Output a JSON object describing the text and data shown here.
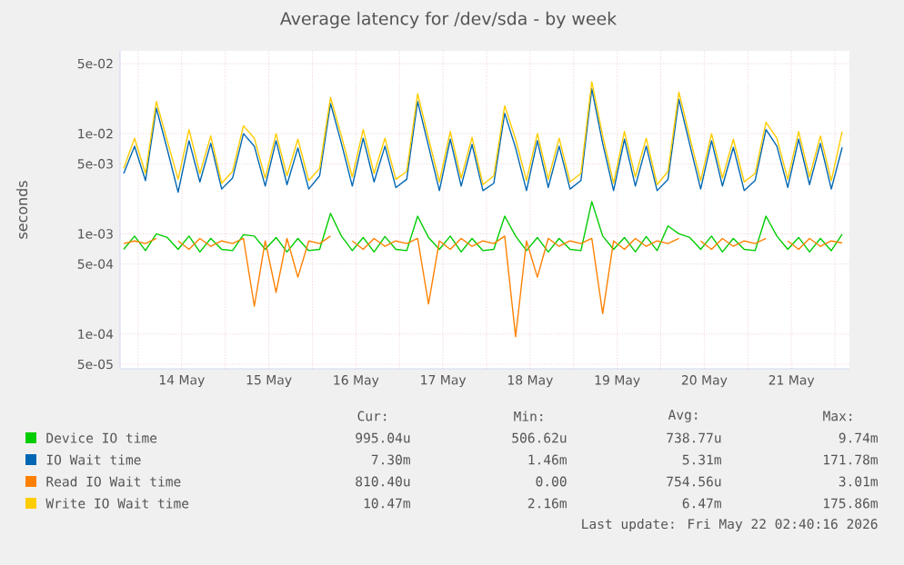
{
  "chart_data": {
    "type": "line",
    "title": "Average latency for /dev/sda - by week",
    "ylabel": "seconds",
    "log": "y",
    "grid": true,
    "legend": "bottom",
    "xlim": [
      "2026-05-13T19:00",
      "2026-05-22T04:00"
    ],
    "xticks": [
      {
        "value": "2026-05-14T00:00",
        "label": null
      },
      {
        "value": "2026-05-14T12:00",
        "label": "14 May"
      },
      {
        "value": "2026-05-15T00:00",
        "label": null
      },
      {
        "value": "2026-05-15T12:00",
        "label": "15 May"
      },
      {
        "value": "2026-05-16T00:00",
        "label": null
      },
      {
        "value": "2026-05-16T12:00",
        "label": "16 May"
      },
      {
        "value": "2026-05-17T00:00",
        "label": null
      },
      {
        "value": "2026-05-17T12:00",
        "label": "17 May"
      },
      {
        "value": "2026-05-18T00:00",
        "label": null
      },
      {
        "value": "2026-05-18T12:00",
        "label": "18 May"
      },
      {
        "value": "2026-05-19T00:00",
        "label": null
      },
      {
        "value": "2026-05-19T12:00",
        "label": "19 May"
      },
      {
        "value": "2026-05-20T00:00",
        "label": null
      },
      {
        "value": "2026-05-20T12:00",
        "label": "20 May"
      },
      {
        "value": "2026-05-21T00:00",
        "label": null
      },
      {
        "value": "2026-05-21T12:00",
        "label": "21 May"
      },
      {
        "value": "2026-05-22T00:00",
        "label": null
      }
    ],
    "ylim": [
      4.5e-05,
      0.067
    ],
    "yticks": [
      {
        "value": 5e-05,
        "label": "5e-05"
      },
      {
        "value": 0.0001,
        "label": "1e-04"
      },
      {
        "value": 0.0005,
        "label": "5e-04"
      },
      {
        "value": 0.001,
        "label": "1e-03"
      },
      {
        "value": 0.005,
        "label": "5e-03"
      },
      {
        "value": 0.01,
        "label": "1e-02"
      },
      {
        "value": 0.05,
        "label": "5e-02"
      }
    ],
    "x": [
      "2026-05-13T20:00",
      "2026-05-13T23:00",
      "2026-05-14T02:00",
      "2026-05-14T05:00",
      "2026-05-14T08:00",
      "2026-05-14T11:00",
      "2026-05-14T14:00",
      "2026-05-14T17:00",
      "2026-05-14T20:00",
      "2026-05-14T23:00",
      "2026-05-15T02:00",
      "2026-05-15T05:00",
      "2026-05-15T08:00",
      "2026-05-15T11:00",
      "2026-05-15T14:00",
      "2026-05-15T17:00",
      "2026-05-15T20:00",
      "2026-05-15T23:00",
      "2026-05-16T02:00",
      "2026-05-16T05:00",
      "2026-05-16T08:00",
      "2026-05-16T11:00",
      "2026-05-16T14:00",
      "2026-05-16T17:00",
      "2026-05-16T20:00",
      "2026-05-16T23:00",
      "2026-05-17T02:00",
      "2026-05-17T05:00",
      "2026-05-17T08:00",
      "2026-05-17T11:00",
      "2026-05-17T14:00",
      "2026-05-17T17:00",
      "2026-05-17T20:00",
      "2026-05-17T23:00",
      "2026-05-18T02:00",
      "2026-05-18T05:00",
      "2026-05-18T08:00",
      "2026-05-18T11:00",
      "2026-05-18T14:00",
      "2026-05-18T17:00",
      "2026-05-18T20:00",
      "2026-05-18T23:00",
      "2026-05-19T02:00",
      "2026-05-19T05:00",
      "2026-05-19T08:00",
      "2026-05-19T11:00",
      "2026-05-19T14:00",
      "2026-05-19T17:00",
      "2026-05-19T20:00",
      "2026-05-19T23:00",
      "2026-05-20T02:00",
      "2026-05-20T05:00",
      "2026-05-20T08:00",
      "2026-05-20T11:00",
      "2026-05-20T14:00",
      "2026-05-20T17:00",
      "2026-05-20T20:00",
      "2026-05-20T23:00",
      "2026-05-21T02:00",
      "2026-05-21T05:00",
      "2026-05-21T08:00",
      "2026-05-21T11:00",
      "2026-05-21T14:00",
      "2026-05-21T17:00",
      "2026-05-21T20:00",
      "2026-05-21T23:00",
      "2026-05-22T02:00"
    ],
    "series": [
      {
        "name": "Device IO time",
        "color": "#00cc00",
        "values": [
          0.0007,
          0.00095,
          0.00068,
          0.001,
          0.00092,
          0.0007,
          0.00095,
          0.00066,
          0.0009,
          0.0007,
          0.00068,
          0.00098,
          0.00095,
          0.0007,
          0.00092,
          0.00066,
          0.0009,
          0.00068,
          0.0007,
          0.0016,
          0.00095,
          0.00068,
          0.00092,
          0.00066,
          0.00094,
          0.0007,
          0.00068,
          0.0015,
          0.00092,
          0.0007,
          0.00095,
          0.00066,
          0.0009,
          0.00068,
          0.0007,
          0.0015,
          0.00095,
          0.00068,
          0.00092,
          0.00066,
          0.0009,
          0.0007,
          0.00068,
          0.0021,
          0.00095,
          0.0007,
          0.00092,
          0.00066,
          0.00094,
          0.00068,
          0.0012,
          0.001,
          0.00092,
          0.0007,
          0.00095,
          0.00066,
          0.0009,
          0.0007,
          0.00068,
          0.0015,
          0.00095,
          0.0007,
          0.00092,
          0.00066,
          0.0009,
          0.00068,
          0.00099
        ]
      },
      {
        "name": "IO Wait time",
        "color": "#0066b3",
        "values": [
          0.004,
          0.0075,
          0.0034,
          0.018,
          0.007,
          0.0026,
          0.0085,
          0.0033,
          0.008,
          0.0028,
          0.0036,
          0.01,
          0.0075,
          0.003,
          0.0085,
          0.0031,
          0.0072,
          0.0028,
          0.0038,
          0.02,
          0.008,
          0.003,
          0.009,
          0.0033,
          0.0075,
          0.0029,
          0.0035,
          0.021,
          0.0075,
          0.0027,
          0.0088,
          0.003,
          0.0078,
          0.0027,
          0.0032,
          0.016,
          0.0072,
          0.0027,
          0.0085,
          0.0029,
          0.0075,
          0.0028,
          0.0034,
          0.028,
          0.008,
          0.0027,
          0.0088,
          0.003,
          0.0075,
          0.0027,
          0.0035,
          0.022,
          0.0078,
          0.0028,
          0.0085,
          0.003,
          0.0073,
          0.0027,
          0.0034,
          0.011,
          0.0075,
          0.0029,
          0.0088,
          0.0031,
          0.008,
          0.0028,
          0.0073
        ]
      },
      {
        "name": "Read IO Wait time",
        "color": "#ff8000",
        "values": [
          0.0008,
          0.00085,
          0.0008,
          0.0009,
          null,
          0.00085,
          0.0007,
          0.0009,
          0.00075,
          0.00085,
          0.0008,
          0.0009,
          0.00019,
          0.00085,
          0.00026,
          0.0009,
          0.00037,
          0.00085,
          0.0008,
          0.00095,
          null,
          0.00085,
          0.0007,
          0.0009,
          0.00075,
          0.00085,
          0.0008,
          0.0009,
          0.0002,
          0.00085,
          0.0007,
          0.0009,
          0.00075,
          0.00085,
          0.0008,
          0.00095,
          9.4e-05,
          0.00085,
          0.00037,
          0.0009,
          0.00075,
          0.00085,
          0.0008,
          0.0009,
          0.00016,
          0.00085,
          0.0007,
          0.0009,
          0.00075,
          0.00085,
          0.0008,
          0.0009,
          null,
          0.00085,
          0.0007,
          0.0009,
          0.00075,
          0.00085,
          0.0008,
          0.0009,
          null,
          0.00085,
          0.0007,
          0.0009,
          0.00075,
          0.00085,
          0.00081
        ]
      },
      {
        "name": "Write IO Wait time",
        "color": "#ffcc00",
        "values": [
          0.0045,
          0.009,
          0.004,
          0.021,
          0.0085,
          0.0035,
          0.011,
          0.004,
          0.0095,
          0.0032,
          0.0042,
          0.012,
          0.009,
          0.0036,
          0.01,
          0.0038,
          0.0088,
          0.0034,
          0.0045,
          0.023,
          0.0095,
          0.0037,
          0.011,
          0.004,
          0.009,
          0.0035,
          0.0042,
          0.025,
          0.009,
          0.0033,
          0.0105,
          0.0036,
          0.0092,
          0.0031,
          0.0038,
          0.019,
          0.0088,
          0.0034,
          0.01,
          0.0035,
          0.009,
          0.0033,
          0.004,
          0.033,
          0.0095,
          0.0032,
          0.0105,
          0.0037,
          0.009,
          0.0031,
          0.0042,
          0.026,
          0.0092,
          0.0034,
          0.01,
          0.0036,
          0.0088,
          0.0033,
          0.004,
          0.013,
          0.009,
          0.0035,
          0.0105,
          0.0037,
          0.0095,
          0.0034,
          0.0105
        ]
      }
    ],
    "annotations": [
      "Cur:",
      "Min:",
      "Avg:",
      "Max:",
      "995.04u",
      "506.62u",
      "738.77u",
      "9.74m",
      "7.30m",
      "1.46m",
      "5.31m",
      "171.78m",
      "810.40u",
      "0.00",
      "754.56u",
      "3.01m",
      "10.47m",
      "2.16m",
      "6.47m",
      "175.86m",
      "Last update: Fri May 22 02:40:16 2026"
    ]
  }
}
